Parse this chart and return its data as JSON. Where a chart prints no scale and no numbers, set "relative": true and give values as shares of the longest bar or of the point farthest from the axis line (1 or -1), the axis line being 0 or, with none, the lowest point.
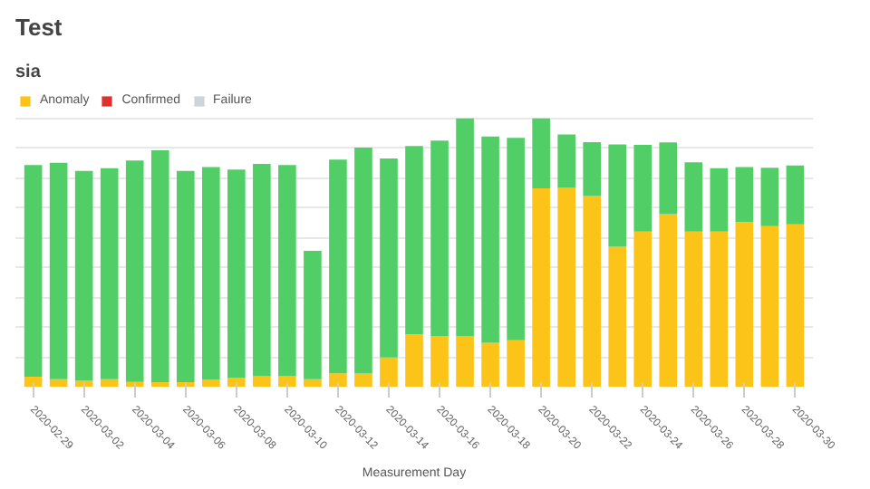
{
  "chart_data": {
    "type": "bar",
    "title": "Test",
    "subtitle": "sia",
    "xlabel": "Measurement Day",
    "stacked": true,
    "relative": true,
    "grid": "y",
    "legend": "top left",
    "categories": [
      "2020-02-29",
      null,
      "2020-03-02",
      null,
      "2020-03-04",
      null,
      "2020-03-06",
      null,
      "2020-03-08",
      null,
      "2020-03-10",
      null,
      "2020-03-12",
      null,
      "2020-03-14",
      null,
      "2020-03-16",
      null,
      "2020-03-18",
      null,
      "2020-03-20",
      null,
      "2020-03-22",
      null,
      "2020-03-24",
      null,
      "2020-03-26",
      null,
      "2020-03-28",
      null,
      "2020-03-30"
    ],
    "series": [
      {
        "color": "#fcc419",
        "name": "Anomaly",
        "values": [
          0.037,
          0.028,
          0.022,
          0.028,
          0.018,
          0.017,
          0.017,
          0.025,
          0.032,
          0.04,
          0.04,
          0.028,
          0.05,
          0.049,
          0.109,
          0.195,
          0.189,
          0.189,
          0.164,
          0.173,
          0.739,
          0.741,
          0.71,
          0.521,
          0.578,
          0.643,
          0.578,
          0.578,
          0.613,
          0.598,
          0.605
        ]
      },
      {
        "color": "#51cf66",
        "values": [
          0.789,
          0.806,
          0.782,
          0.786,
          0.825,
          0.864,
          0.787,
          0.793,
          0.777,
          0.79,
          0.786,
          0.478,
          0.796,
          0.842,
          0.741,
          0.702,
          0.728,
          0.811,
          0.768,
          0.754,
          0.261,
          0.199,
          0.201,
          0.382,
          0.323,
          0.267,
          0.258,
          0.236,
          0.205,
          0.218,
          0.219
        ]
      },
      {
        "color": "#e03131",
        "name": "Confirmed",
        "values": [
          0,
          0,
          0,
          0,
          0,
          0,
          0,
          0,
          0,
          0,
          0,
          0,
          0,
          0,
          0,
          0,
          0,
          0,
          0,
          0,
          0,
          0,
          0,
          0,
          0,
          0,
          0,
          0,
          0,
          0,
          0
        ]
      },
      {
        "color": "#ced4da",
        "name": "Failure",
        "values": [
          0,
          0,
          0,
          0,
          0,
          0,
          0,
          0,
          0,
          0,
          0,
          0,
          0,
          0,
          0,
          0,
          0,
          0,
          0,
          0,
          0,
          0,
          0,
          0,
          0,
          0,
          0,
          0,
          0,
          0,
          0
        ]
      }
    ]
  }
}
